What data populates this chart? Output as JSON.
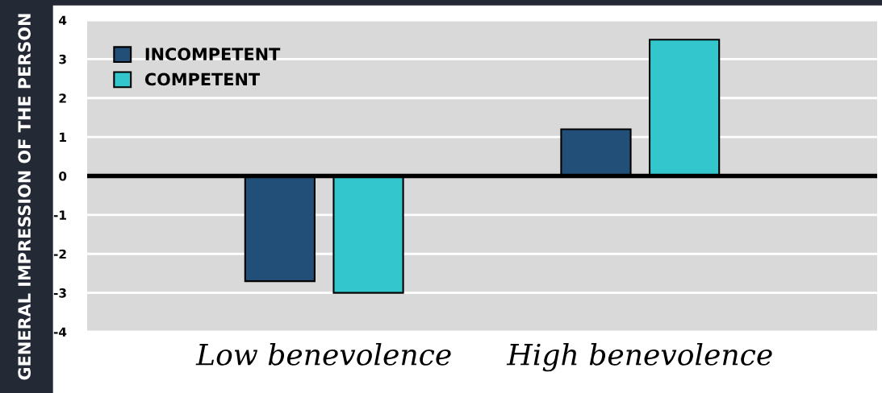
{
  "chart_data": {
    "type": "bar",
    "ylabel": "GENERAL IMPRESSION OF THE PERSON",
    "categories": [
      "Low benevolence",
      "High benevolence"
    ],
    "series": [
      {
        "name": "INCOMPETENT",
        "color": "#214f78",
        "values": [
          -2.7,
          1.2
        ]
      },
      {
        "name": "COMPETENT",
        "color": "#33c6cc",
        "values": [
          -3.0,
          3.5
        ]
      }
    ],
    "ylim": [
      -4,
      4
    ],
    "yticks": [
      -4,
      -3,
      -2,
      -1,
      0,
      1,
      2,
      3,
      4
    ],
    "ref_lines": [
      {
        "axis": "y",
        "value": 0,
        "color": "#000000"
      }
    ],
    "grid": "y",
    "legend": "top left"
  }
}
